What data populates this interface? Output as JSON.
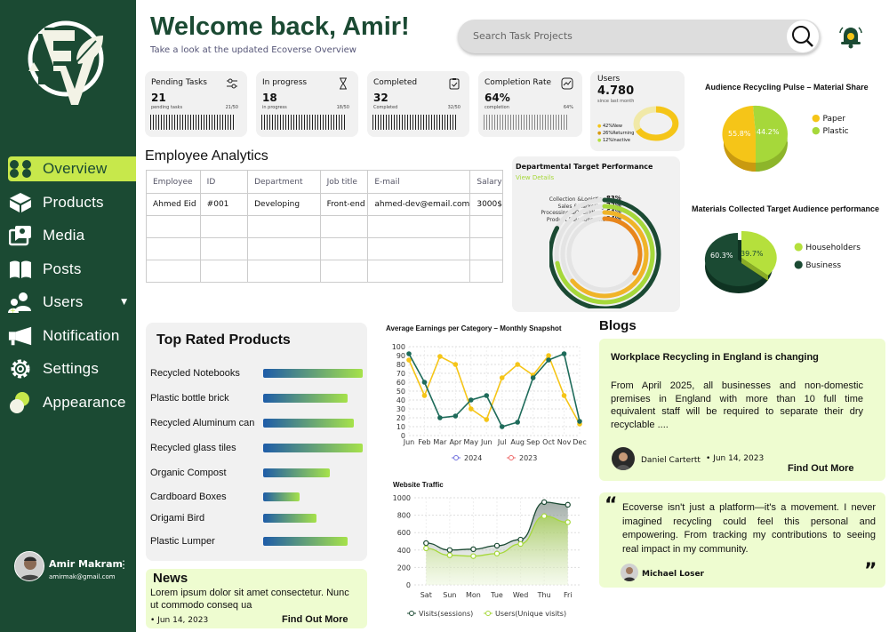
{
  "sidebar": {
    "items": [
      {
        "label": "Overview",
        "icon": "overview-icon",
        "active": true
      },
      {
        "label": "Products",
        "icon": "box-icon"
      },
      {
        "label": "Media",
        "icon": "media-icon"
      },
      {
        "label": "Posts",
        "icon": "book-icon"
      },
      {
        "label": "Users",
        "icon": "users-icon"
      },
      {
        "label": "Notification",
        "icon": "megaphone-icon"
      },
      {
        "label": "Settings",
        "icon": "gear-icon"
      },
      {
        "label": "Appearance",
        "icon": "appearance-icon"
      }
    ],
    "user": {
      "name": "Amir Makram",
      "email": "amirmak@gmail.com"
    }
  },
  "header": {
    "welcome": "Welcome back, Amir!",
    "subtitle": "Take a look at the updated Ecoverse Overview",
    "search_placeholder": "Search Task Projects"
  },
  "stats": [
    {
      "title": "Pending Tasks",
      "value": "21",
      "sub": "pending tasks",
      "ratio": "21/50",
      "icon": "sliders-icon"
    },
    {
      "title": "In progress",
      "value": "18",
      "sub": "in progress",
      "ratio": "18/50",
      "icon": "hourglass-icon"
    },
    {
      "title": "Completed",
      "value": "32",
      "sub": "Completed",
      "ratio": "32/50",
      "icon": "clipboard-check-icon"
    },
    {
      "title": "Completion Rate",
      "value": "64%",
      "sub": "completion",
      "ratio": "64%",
      "icon": "chart-check-icon"
    }
  ],
  "users_card": {
    "title": "Users",
    "value": "4.780",
    "sub": "since last month",
    "legend": [
      "42%New",
      "26%Returning",
      "12%Inactive"
    ]
  },
  "employee": {
    "title": "Employee Analytics",
    "headers": [
      "Employee",
      "ID",
      "Department",
      "Job title",
      "E-mail",
      "Salary"
    ],
    "rows": [
      [
        "Ahmed Eid",
        "#001",
        "Developing",
        "Front-end",
        "ahmed-dev@email.com",
        "3000$"
      ]
    ]
  },
  "dept": {
    "title": "Departmental Target Performance",
    "link": "View Details",
    "items": [
      {
        "label": "Collection &Logistics",
        "pct": "83%",
        "value": 83,
        "color": "#1b4a33"
      },
      {
        "label": "Sales &Marketing",
        "pct": "72%",
        "value": 72,
        "color": "#a6d83a"
      },
      {
        "label": "Processing &Operations",
        "pct": "64%",
        "value": 64,
        "color": "#f0b428"
      },
      {
        "label": "Product Development",
        "pct": "34%",
        "value": 34,
        "color": "#e8861c"
      }
    ]
  },
  "pie1": {
    "title": "Audience Recycling Pulse – Material Share",
    "labels": [
      "55.8%",
      "44.2%"
    ],
    "values": [
      55.8,
      44.2
    ],
    "legend": [
      "Paper",
      "Plastic"
    ],
    "colors": [
      "#f5c518",
      "#a6d83a"
    ]
  },
  "pie2": {
    "title": "Materials Collected Target Audience performance",
    "labels": [
      "60.3%",
      "39.7%"
    ],
    "values": [
      60.3,
      39.7
    ],
    "legend": [
      "Householders",
      "Business"
    ],
    "colors": [
      "#1b4a33",
      "#b5e03c"
    ]
  },
  "top_products": {
    "title": "Top Rated Products",
    "items": [
      {
        "name": "Recycled Notebooks",
        "value": 1.0
      },
      {
        "name": "Plastic bottle brick",
        "value": 0.85
      },
      {
        "name": "Recycled Aluminum can",
        "value": 0.91
      },
      {
        "name": "Recycled glass tiles",
        "value": 1.0
      },
      {
        "name": "Organic Compost",
        "value": 0.67
      },
      {
        "name": "Cardboard Boxes",
        "value": 0.37
      },
      {
        "name": "Origami Bird",
        "value": 0.54
      },
      {
        "name": "Plastic Lumper",
        "value": 0.85
      }
    ]
  },
  "chart_data": [
    {
      "type": "line",
      "title": "Average Earnings per Category – Monthly Snapshot",
      "categories": [
        "Jun",
        "Feb",
        "Mar",
        "Apr",
        "May",
        "Jun",
        "Jul",
        "Aug",
        "Sep",
        "Oct",
        "Nov",
        "Dec"
      ],
      "ylim": [
        0,
        100
      ],
      "yticks": [
        "0",
        "10",
        "20",
        "30",
        "40",
        "50",
        "60",
        "70",
        "80",
        "90",
        "100"
      ],
      "series": [
        {
          "name": "2024",
          "values": [
            92,
            60,
            20,
            22,
            40,
            45,
            10,
            15,
            65,
            85,
            92,
            16
          ],
          "color": "#1e6b5a"
        },
        {
          "name": "2023",
          "values": [
            85,
            45,
            89,
            80,
            30,
            18,
            65,
            80,
            68,
            90,
            45,
            13
          ],
          "color": "#f5c518"
        }
      ]
    },
    {
      "type": "area",
      "title": "Website Traffic",
      "categories": [
        "Sat",
        "Sun",
        "Mon",
        "Tue",
        "Wed",
        "Thu",
        "Fri"
      ],
      "ylim": [
        0,
        1000
      ],
      "yticks": [
        "0",
        "200",
        "400",
        "600",
        "800",
        "1000"
      ],
      "series": [
        {
          "name": "Visits(sessions)",
          "values": [
            480,
            400,
            410,
            450,
            520,
            950,
            920
          ],
          "color": "#1b4a33"
        },
        {
          "name": "Users(Unique visits)",
          "values": [
            420,
            340,
            330,
            360,
            470,
            790,
            720
          ],
          "color": "#a6d83a"
        }
      ]
    }
  ],
  "blogs": {
    "title": "Blogs",
    "post": {
      "heading": "Workplace Recycling in England is changing",
      "body": "From April 2025, all businesses and non-domestic premises in England with more than 10 full time equivalent staff will be required to separate their dry recyclable ....",
      "author": "Daniel Cartertt",
      "date": "• Jun 14, 2023",
      "cta": "Find Out More"
    },
    "quote": {
      "text": "Ecoverse isn't just a platform—it's a movement. I never imagined recycling could feel this personal and empowering. From tracking my contributions to seeing real impact in my community.",
      "author": "Michael Loser"
    }
  },
  "news": {
    "title": "News",
    "body": "Lorem ipsum dolor sit amet consectetur. Nunc ut commodo conseq ua",
    "date": "• Jun 14, 2023",
    "cta": "Find Out More"
  }
}
